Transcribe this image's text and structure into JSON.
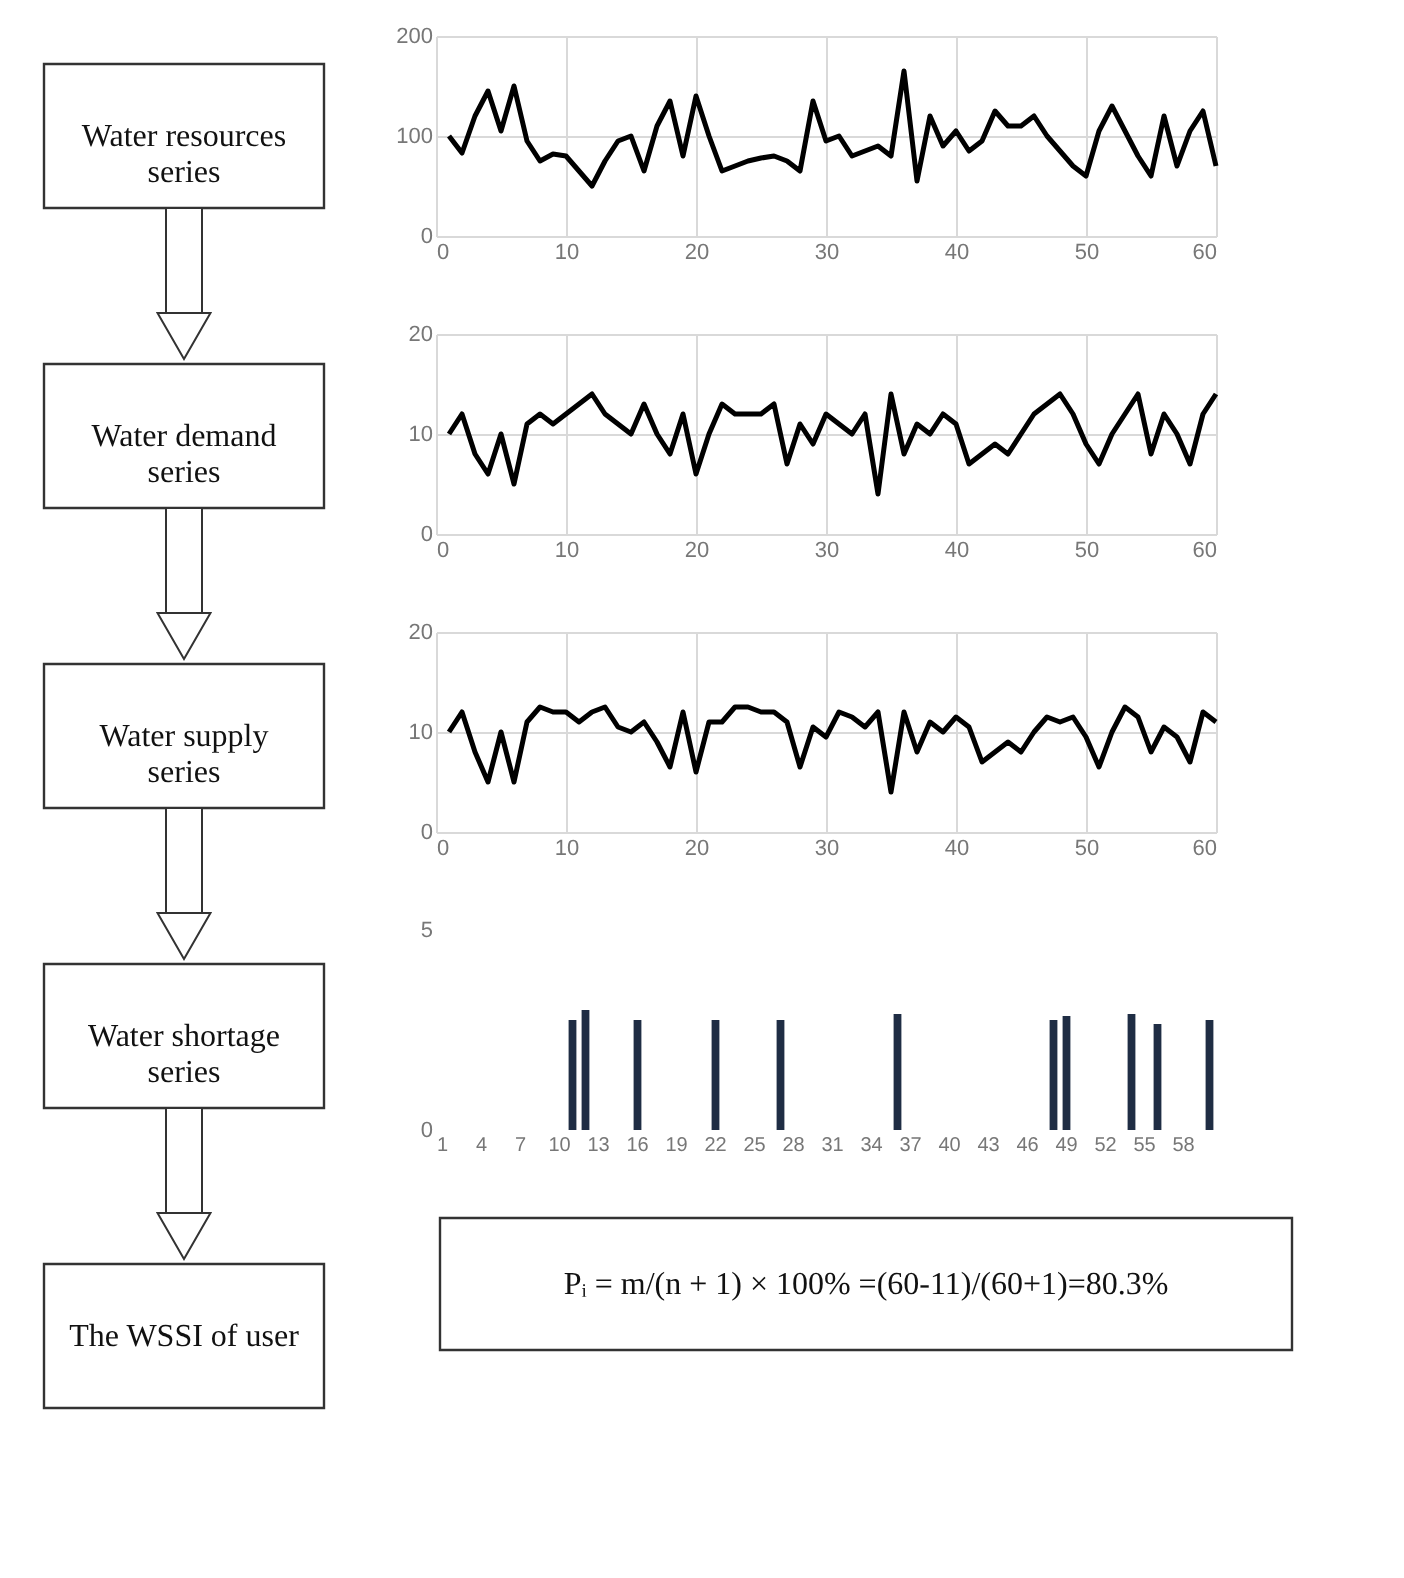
{
  "chart_data": [
    {
      "type": "other",
      "annotations": [
        "Water resources series",
        "Water demand series",
        "Water supply series",
        "Water shortage series",
        "The WSSI of user"
      ]
    },
    {
      "type": "line",
      "x": [
        1,
        2,
        3,
        4,
        5,
        6,
        7,
        8,
        9,
        10,
        11,
        12,
        13,
        14,
        15,
        16,
        17,
        18,
        19,
        20,
        21,
        22,
        23,
        24,
        25,
        26,
        27,
        28,
        29,
        30,
        31,
        32,
        33,
        34,
        35,
        36,
        37,
        38,
        39,
        40,
        41,
        42,
        43,
        44,
        45,
        46,
        47,
        48,
        49,
        50,
        51,
        52,
        53,
        54,
        55,
        56,
        57,
        58,
        59,
        60
      ],
      "series": [
        {
          "color": "#000000",
          "values": [
            100,
            83,
            120,
            145,
            105,
            150,
            95,
            75,
            82,
            80,
            65,
            50,
            75,
            95,
            100,
            65,
            110,
            135,
            80,
            140,
            100,
            65,
            70,
            75,
            78,
            80,
            75,
            65,
            135,
            95,
            100,
            80,
            85,
            90,
            80,
            165,
            55,
            120,
            90,
            105,
            85,
            95,
            125,
            110,
            110,
            120,
            100,
            85,
            70,
            60,
            105,
            130,
            105,
            80,
            60,
            120,
            70,
            105,
            125,
            70
          ]
        }
      ],
      "xlim": [
        0,
        60
      ],
      "xticks": [
        0,
        10,
        20,
        30,
        40,
        50,
        60
      ],
      "ylim": [
        0,
        200
      ],
      "yticks": [
        0,
        100,
        200
      ],
      "grid": true
    },
    {
      "type": "line",
      "x": [
        1,
        2,
        3,
        4,
        5,
        6,
        7,
        8,
        9,
        10,
        11,
        12,
        13,
        14,
        15,
        16,
        17,
        18,
        19,
        20,
        21,
        22,
        23,
        24,
        25,
        26,
        27,
        28,
        29,
        30,
        31,
        32,
        33,
        34,
        35,
        36,
        37,
        38,
        39,
        40,
        41,
        42,
        43,
        44,
        45,
        46,
        47,
        48,
        49,
        50,
        51,
        52,
        53,
        54,
        55,
        56,
        57,
        58,
        59,
        60
      ],
      "series": [
        {
          "color": "#000000",
          "values": [
            10,
            12,
            8,
            6,
            10,
            5,
            11,
            12,
            11,
            12,
            13,
            14,
            12,
            11,
            10,
            13,
            10,
            8,
            12,
            6,
            10,
            13,
            12,
            12,
            12,
            13,
            7,
            11,
            9,
            12,
            11,
            10,
            12,
            4,
            14,
            8,
            11,
            10,
            12,
            11,
            7,
            8,
            9,
            8,
            10,
            12,
            13,
            14,
            12,
            9,
            7,
            10,
            12,
            14,
            8,
            12,
            10,
            7,
            12,
            14
          ]
        }
      ],
      "xlim": [
        0,
        60
      ],
      "xticks": [
        0,
        10,
        20,
        30,
        40,
        50,
        60
      ],
      "ylim": [
        0,
        20
      ],
      "yticks": [
        0,
        10,
        20
      ],
      "grid": true
    },
    {
      "type": "line",
      "x": [
        1,
        2,
        3,
        4,
        5,
        6,
        7,
        8,
        9,
        10,
        11,
        12,
        13,
        14,
        15,
        16,
        17,
        18,
        19,
        20,
        21,
        22,
        23,
        24,
        25,
        26,
        27,
        28,
        29,
        30,
        31,
        32,
        33,
        34,
        35,
        36,
        37,
        38,
        39,
        40,
        41,
        42,
        43,
        44,
        45,
        46,
        47,
        48,
        49,
        50,
        51,
        52,
        53,
        54,
        55,
        56,
        57,
        58,
        59,
        60
      ],
      "series": [
        {
          "color": "#000000",
          "values": [
            10,
            12,
            8,
            5,
            10,
            5,
            11,
            12.5,
            12,
            12,
            11,
            12,
            12.5,
            10.5,
            10,
            11,
            9,
            6.5,
            12,
            6,
            11,
            11,
            12.5,
            12.5,
            12,
            12,
            11,
            6.5,
            10.5,
            9.5,
            12,
            11.5,
            10.5,
            12,
            4,
            12,
            8,
            11,
            10,
            11.5,
            10.5,
            7,
            8,
            9,
            8,
            10,
            11.5,
            11,
            11.5,
            9.5,
            6.5,
            10,
            12.5,
            11.5,
            8,
            10.5,
            9.5,
            7,
            12,
            11
          ]
        }
      ],
      "xlim": [
        0,
        60
      ],
      "xticks": [
        0,
        10,
        20,
        30,
        40,
        50,
        60
      ],
      "ylim": [
        0,
        20
      ],
      "yticks": [
        0,
        10,
        20
      ],
      "grid": true
    },
    {
      "type": "bar",
      "categories": [
        "1",
        null,
        null,
        "4",
        null,
        null,
        "7",
        null,
        null,
        "10",
        null,
        null,
        "13",
        null,
        null,
        "16",
        null,
        null,
        "19",
        null,
        null,
        "22",
        null,
        null,
        "25",
        null,
        null,
        "28",
        null,
        null,
        "31",
        null,
        null,
        "34",
        null,
        null,
        "37",
        null,
        null,
        "40",
        null,
        null,
        "43",
        null,
        null,
        "46",
        null,
        null,
        "49",
        null,
        null,
        "52",
        null,
        null,
        "55",
        null,
        null,
        "58",
        null,
        null
      ],
      "series": [
        {
          "color": "#1f2d44",
          "values": [
            0,
            0,
            0,
            0,
            0,
            0,
            0,
            0,
            0,
            0,
            2.75,
            3,
            0,
            0,
            0,
            2.75,
            0,
            0,
            0,
            0,
            0,
            2.75,
            0,
            0,
            0,
            0,
            2.75,
            0,
            0,
            0,
            0,
            0,
            0,
            0,
            0,
            2.9,
            0,
            0,
            0,
            0,
            0,
            0,
            0,
            0,
            0,
            0,
            0,
            2.75,
            2.85,
            0,
            0,
            0,
            0,
            2.9,
            0,
            2.65,
            0,
            0,
            0,
            2.75
          ]
        }
      ],
      "ylim": [
        0,
        5
      ],
      "yticks": [
        0,
        5
      ]
    },
    {
      "type": "other",
      "annotations": [
        "Pᵢ = m/(n + 1) × 100%   =(60-11)/(60+1)=80.3%"
      ]
    }
  ]
}
